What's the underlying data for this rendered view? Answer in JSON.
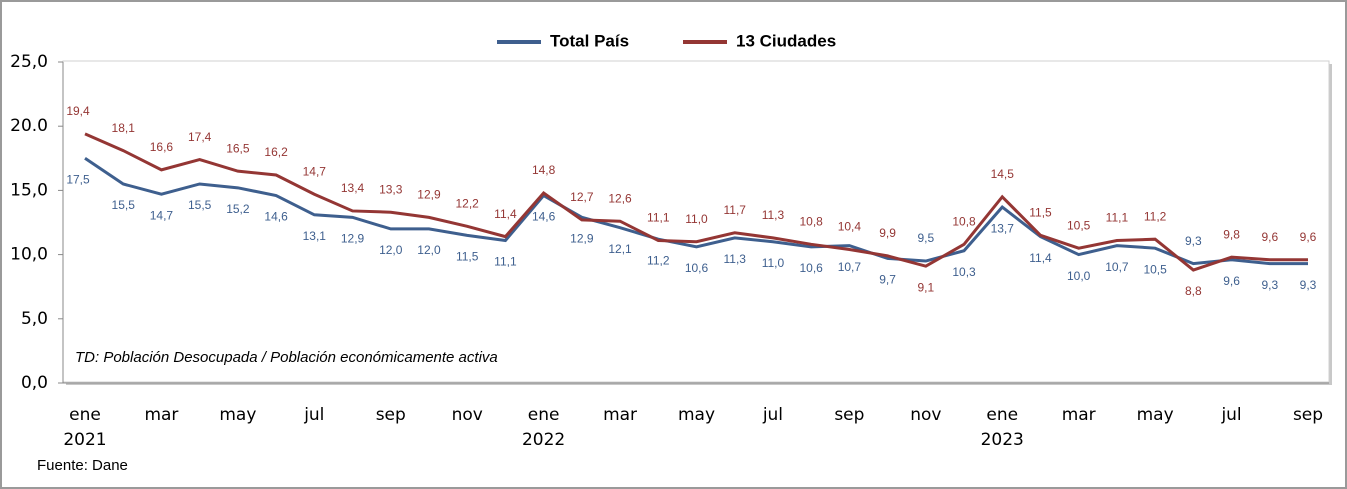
{
  "chart_data": {
    "type": "line",
    "categories": [
      "ene",
      null,
      "mar",
      null,
      "may",
      null,
      "jul",
      null,
      "sep",
      null,
      "nov",
      null,
      "ene",
      null,
      "mar",
      null,
      "may",
      null,
      "jul",
      null,
      "sep",
      null,
      "nov",
      null,
      "ene",
      null,
      "mar",
      null,
      "may",
      null,
      "jul",
      null,
      "sep"
    ],
    "years": [
      "2021",
      null,
      null,
      null,
      null,
      null,
      null,
      null,
      null,
      null,
      null,
      null,
      "2022",
      null,
      null,
      null,
      null,
      null,
      null,
      null,
      null,
      null,
      null,
      null,
      "2023",
      null,
      null,
      null,
      null,
      null,
      null,
      null,
      null
    ],
    "series": [
      {
        "name": "Total País",
        "color": "#3e5f8e",
        "values": [
          17.5,
          15.5,
          14.7,
          15.5,
          15.2,
          14.6,
          13.1,
          12.9,
          12.0,
          12.0,
          11.5,
          11.1,
          14.6,
          12.9,
          12.1,
          11.2,
          10.6,
          11.3,
          11.0,
          10.6,
          10.7,
          9.7,
          9.5,
          10.3,
          13.7,
          11.4,
          10.0,
          10.7,
          10.5,
          9.3,
          9.6,
          9.3,
          9.3
        ],
        "value_labels": [
          "17,5",
          "15,5",
          "14,7",
          "15,5",
          "15,2",
          "14,6",
          "13,1",
          "12,9",
          "12,0",
          "12,0",
          "11,5",
          "11,1",
          "14,6",
          "12,9",
          "12,1",
          "11,2",
          "10,6",
          "11,3",
          "11,0",
          "10,6",
          "10,7",
          "9,7",
          "9,5",
          "10,3",
          "13,7",
          "11,4",
          "10,0",
          "10,7",
          "10,5",
          "9,3",
          "9,6",
          "9,3",
          "9,3"
        ]
      },
      {
        "name": "13 Ciudades",
        "color": "#943634",
        "values": [
          19.4,
          18.1,
          16.6,
          17.4,
          16.5,
          16.2,
          14.7,
          13.4,
          13.3,
          12.9,
          12.2,
          11.4,
          14.8,
          12.7,
          12.6,
          11.1,
          11.0,
          11.7,
          11.3,
          10.8,
          10.4,
          9.9,
          9.1,
          10.8,
          14.5,
          11.5,
          10.5,
          11.1,
          11.2,
          8.8,
          9.8,
          9.6,
          9.6
        ],
        "value_labels": [
          "19,4",
          "18,1",
          "16,6",
          "17,4",
          "16,5",
          "16,2",
          "14,7",
          "13,4",
          "13,3",
          "12,9",
          "12,2",
          "11,4",
          "14,8",
          "12,7",
          "12,6",
          "11,1",
          "11,0",
          "11,7",
          "11,3",
          "10,8",
          "10,4",
          "9,9",
          "9,1",
          "10,8",
          "14,5",
          "11,5",
          "10,5",
          "11,1",
          "11,2",
          "8,8",
          "9,8",
          "9,6",
          "9,6"
        ]
      }
    ],
    "ylim": [
      0,
      25
    ],
    "yticks": [
      {
        "value": 0,
        "label": "0,0"
      },
      {
        "value": 5,
        "label": "5,0"
      },
      {
        "value": 10,
        "label": "10,0"
      },
      {
        "value": 15,
        "label": "15,0"
      },
      {
        "value": 20,
        "label": "20.0"
      },
      {
        "value": 25,
        "label": "25,0"
      }
    ],
    "grid": false,
    "annotation": "TD: Población  Desocupada / Población económicamente activa",
    "source": "Fuente: Dane"
  }
}
